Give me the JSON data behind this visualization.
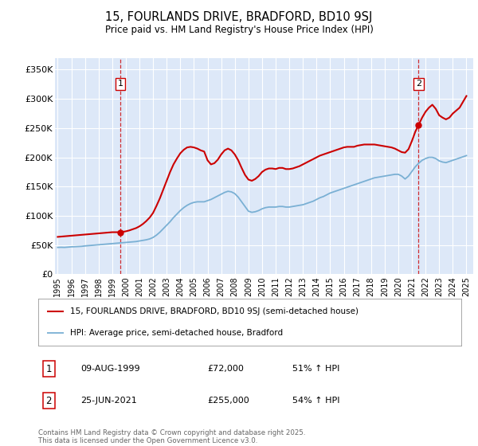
{
  "title": "15, FOURLANDS DRIVE, BRADFORD, BD10 9SJ",
  "subtitle": "Price paid vs. HM Land Registry's House Price Index (HPI)",
  "background_color": "#ffffff",
  "plot_bg_color": "#dde8f8",
  "yticks": [
    0,
    50000,
    100000,
    150000,
    200000,
    250000,
    300000,
    350000
  ],
  "ytick_labels": [
    "£0",
    "£50K",
    "£100K",
    "£150K",
    "£200K",
    "£250K",
    "£300K",
    "£350K"
  ],
  "xmin": 1994.8,
  "xmax": 2025.5,
  "ymin": 0,
  "ymax": 370000,
  "purchase1_x": 1999.6,
  "purchase1_y": 72000,
  "purchase2_x": 2021.48,
  "purchase2_y": 255000,
  "legend_line1": "15, FOURLANDS DRIVE, BRADFORD, BD10 9SJ (semi-detached house)",
  "legend_line2": "HPI: Average price, semi-detached house, Bradford",
  "annotation1_label": "1",
  "annotation1_date": "09-AUG-1999",
  "annotation1_price": "£72,000",
  "annotation1_hpi": "51% ↑ HPI",
  "annotation2_label": "2",
  "annotation2_date": "25-JUN-2021",
  "annotation2_price": "£255,000",
  "annotation2_hpi": "54% ↑ HPI",
  "footer": "Contains HM Land Registry data © Crown copyright and database right 2025.\nThis data is licensed under the Open Government Licence v3.0.",
  "red_color": "#cc0000",
  "blue_color": "#7ab0d4",
  "hpi_years": [
    1995,
    1995.25,
    1995.5,
    1995.75,
    1996,
    1996.25,
    1996.5,
    1996.75,
    1997,
    1997.25,
    1997.5,
    1997.75,
    1998,
    1998.25,
    1998.5,
    1998.75,
    1999,
    1999.25,
    1999.5,
    1999.75,
    2000,
    2000.25,
    2000.5,
    2000.75,
    2001,
    2001.25,
    2001.5,
    2001.75,
    2002,
    2002.25,
    2002.5,
    2002.75,
    2003,
    2003.25,
    2003.5,
    2003.75,
    2004,
    2004.25,
    2004.5,
    2004.75,
    2005,
    2005.25,
    2005.5,
    2005.75,
    2006,
    2006.25,
    2006.5,
    2006.75,
    2007,
    2007.25,
    2007.5,
    2007.75,
    2008,
    2008.25,
    2008.5,
    2008.75,
    2009,
    2009.25,
    2009.5,
    2009.75,
    2010,
    2010.25,
    2010.5,
    2010.75,
    2011,
    2011.25,
    2011.5,
    2011.75,
    2012,
    2012.25,
    2012.5,
    2012.75,
    2013,
    2013.25,
    2013.5,
    2013.75,
    2014,
    2014.25,
    2014.5,
    2014.75,
    2015,
    2015.25,
    2015.5,
    2015.75,
    2016,
    2016.25,
    2016.5,
    2016.75,
    2017,
    2017.25,
    2017.5,
    2017.75,
    2018,
    2018.25,
    2018.5,
    2018.75,
    2019,
    2019.25,
    2019.5,
    2019.75,
    2020,
    2020.25,
    2020.5,
    2020.75,
    2021,
    2021.25,
    2021.5,
    2021.75,
    2022,
    2022.25,
    2022.5,
    2022.75,
    2023,
    2023.25,
    2023.5,
    2023.75,
    2024,
    2024.25,
    2024.5,
    2024.75,
    2025.0
  ],
  "hpi_values": [
    46000,
    46200,
    46000,
    46500,
    47000,
    47200,
    47500,
    47800,
    48500,
    49000,
    49500,
    50000,
    50500,
    51000,
    51500,
    52000,
    52500,
    53000,
    53500,
    54000,
    54500,
    55000,
    55500,
    56000,
    57000,
    58000,
    59000,
    60500,
    63000,
    67000,
    72000,
    78000,
    84000,
    90000,
    97000,
    103000,
    109000,
    114000,
    118000,
    121000,
    123000,
    124000,
    124000,
    124000,
    126000,
    128000,
    131000,
    134000,
    137000,
    140000,
    142000,
    141000,
    138000,
    132000,
    124000,
    116000,
    108000,
    106000,
    107000,
    109000,
    112000,
    114000,
    115000,
    115000,
    115000,
    116000,
    116000,
    115000,
    115000,
    116000,
    117000,
    118000,
    119000,
    121000,
    123000,
    125000,
    128000,
    131000,
    133000,
    136000,
    139000,
    141000,
    143000,
    145000,
    147000,
    149000,
    151000,
    153000,
    155000,
    157000,
    159000,
    161000,
    163000,
    165000,
    166000,
    167000,
    168000,
    169000,
    170000,
    171000,
    171000,
    168000,
    163000,
    168000,
    176000,
    184000,
    190000,
    195000,
    198000,
    200000,
    200000,
    198000,
    194000,
    192000,
    191000,
    193000,
    195000,
    197000,
    199000,
    201000,
    203000
  ],
  "prop_years": [
    1995,
    1995.25,
    1995.5,
    1995.75,
    1996,
    1996.25,
    1996.5,
    1996.75,
    1997,
    1997.25,
    1997.5,
    1997.75,
    1998,
    1998.25,
    1998.5,
    1998.75,
    1999,
    1999.25,
    1999.5,
    1999.6,
    1999.75,
    2000,
    2000.25,
    2000.5,
    2000.75,
    2001,
    2001.25,
    2001.5,
    2001.75,
    2002,
    2002.25,
    2002.5,
    2002.75,
    2003,
    2003.25,
    2003.5,
    2003.75,
    2004,
    2004.25,
    2004.5,
    2004.75,
    2005,
    2005.25,
    2005.5,
    2005.75,
    2006,
    2006.25,
    2006.5,
    2006.75,
    2007,
    2007.25,
    2007.5,
    2007.75,
    2008,
    2008.25,
    2008.5,
    2008.75,
    2009,
    2009.25,
    2009.5,
    2009.75,
    2010,
    2010.25,
    2010.5,
    2010.75,
    2011,
    2011.25,
    2011.5,
    2011.75,
    2012,
    2012.25,
    2012.5,
    2012.75,
    2013,
    2013.25,
    2013.5,
    2013.75,
    2014,
    2014.25,
    2014.5,
    2014.75,
    2015,
    2015.25,
    2015.5,
    2015.75,
    2016,
    2016.25,
    2016.5,
    2016.75,
    2017,
    2017.25,
    2017.5,
    2017.75,
    2018,
    2018.25,
    2018.5,
    2018.75,
    2019,
    2019.25,
    2019.5,
    2019.75,
    2020,
    2020.25,
    2020.5,
    2020.75,
    2021,
    2021.25,
    2021.48,
    2021.75,
    2022,
    2022.25,
    2022.5,
    2022.75,
    2023,
    2023.25,
    2023.5,
    2023.75,
    2024,
    2024.25,
    2024.5,
    2024.75,
    2025.0
  ],
  "prop_values": [
    64000,
    64500,
    65000,
    65500,
    66000,
    66500,
    67000,
    67500,
    68000,
    68500,
    69000,
    69500,
    70000,
    70500,
    71000,
    71500,
    72000,
    72000,
    72000,
    72000,
    72500,
    73500,
    75000,
    77000,
    79000,
    82000,
    86000,
    91000,
    97000,
    105000,
    117000,
    130000,
    145000,
    160000,
    175000,
    188000,
    198000,
    207000,
    213000,
    217000,
    218000,
    217000,
    215000,
    212000,
    210000,
    195000,
    188000,
    190000,
    196000,
    205000,
    212000,
    215000,
    212000,
    205000,
    195000,
    182000,
    170000,
    162000,
    160000,
    163000,
    168000,
    175000,
    179000,
    181000,
    181000,
    180000,
    182000,
    182000,
    180000,
    180000,
    181000,
    183000,
    185000,
    188000,
    191000,
    194000,
    197000,
    200000,
    203000,
    205000,
    207000,
    209000,
    211000,
    213000,
    215000,
    217000,
    218000,
    218000,
    218000,
    220000,
    221000,
    222000,
    222000,
    222000,
    222000,
    221000,
    220000,
    219000,
    218000,
    217000,
    215000,
    212000,
    209000,
    208000,
    214000,
    228000,
    244000,
    255000,
    268000,
    278000,
    285000,
    290000,
    283000,
    272000,
    268000,
    265000,
    268000,
    275000,
    280000,
    285000,
    295000,
    305000
  ]
}
